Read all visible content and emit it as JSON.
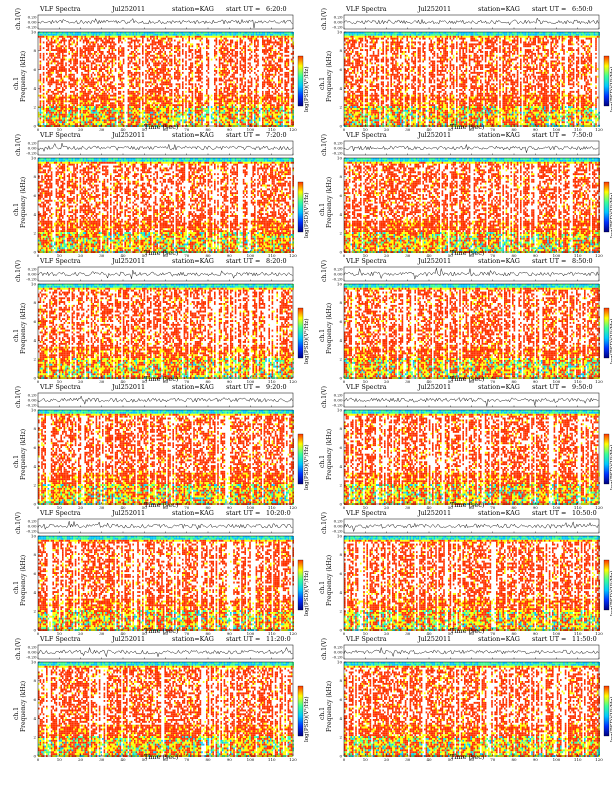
{
  "chart_data": {
    "type": "heatmap",
    "common": {
      "title": "VLF Spectra",
      "date": "Jul252011",
      "station": "station=KAG",
      "start_prefix": "start UT =",
      "waveform_ylabel": "ch.1(V)",
      "waveform_ticks": [
        "0.20",
        "0.00",
        "-0.20"
      ],
      "waveform_ylim": [
        -0.2,
        0.2
      ],
      "spectrum_ylabel_top": "ch.1",
      "spectrum_ylabel": "Frequency (kHz)",
      "xlabel": "Time (sec)",
      "xlim": [
        0,
        120
      ],
      "xticks": [
        0,
        10,
        20,
        30,
        40,
        50,
        60,
        70,
        80,
        90,
        100,
        110,
        120
      ],
      "ylim": [
        0,
        10
      ],
      "yticks": [
        0,
        2,
        4,
        6,
        8,
        10
      ],
      "colorbar_label": "log(PSD)(V²/Hz)",
      "colorbar_ticks": [],
      "colormap": [
        "#00007f",
        "#0033ff",
        "#00c8ff",
        "#3cff96",
        "#ffff00",
        "#ff3200",
        "#ffffff"
      ]
    },
    "panels": [
      {
        "start_ut": "6:20:0"
      },
      {
        "start_ut": "6:50:0"
      },
      {
        "start_ut": "7:20:0"
      },
      {
        "start_ut": "7:50:0"
      },
      {
        "start_ut": "8:20:0"
      },
      {
        "start_ut": "8:50:0"
      },
      {
        "start_ut": "9:20:0"
      },
      {
        "start_ut": "9:50:0"
      },
      {
        "start_ut": "10:20:0"
      },
      {
        "start_ut": "10:50:0"
      },
      {
        "start_ut": "11:20:0"
      },
      {
        "start_ut": "11:50:0"
      }
    ]
  }
}
